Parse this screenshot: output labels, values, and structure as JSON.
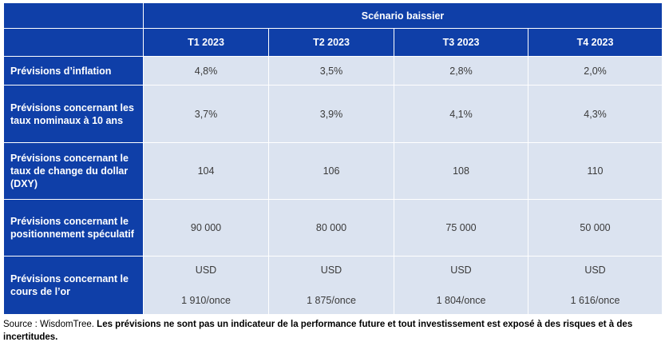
{
  "table": {
    "scenario_title": "Scénario baissier",
    "columns": [
      "T1 2023",
      "T2 2023",
      "T3 2023",
      "T4 2023"
    ],
    "rows": [
      {
        "label": "Prévisions d’inflation",
        "values": [
          "4,8%",
          "3,5%",
          "2,8%",
          "2,0%"
        ]
      },
      {
        "label": "Prévisions concernant les taux nominaux à 10 ans",
        "values": [
          "3,7%",
          "3,9%",
          "4,1%",
          "4,3%"
        ]
      },
      {
        "label": "Prévisions concernant le taux de change du dollar (DXY)",
        "values": [
          "104",
          "106",
          "108",
          "110"
        ]
      },
      {
        "label": "Prévisions concernant le positionnement spéculatif",
        "values": [
          "90 000",
          "80 000",
          "75 000",
          "50 000"
        ]
      },
      {
        "label": "Prévisions concernant le cours de l’or",
        "currency": [
          "USD",
          "USD",
          "USD",
          "USD"
        ],
        "values": [
          "1 910/once",
          "1 875/once",
          "1 804/once",
          "1 616/once"
        ]
      }
    ]
  },
  "footnote": {
    "source": "Source : WisdomTree.",
    "disclaimer": "Les prévisions ne sont pas un indicateur de la performance future et tout investissement est exposé à des risques et à des incertitudes."
  },
  "colors": {
    "header_bg": "#0f3fa8",
    "cell_bg": "#dbe3f0"
  }
}
